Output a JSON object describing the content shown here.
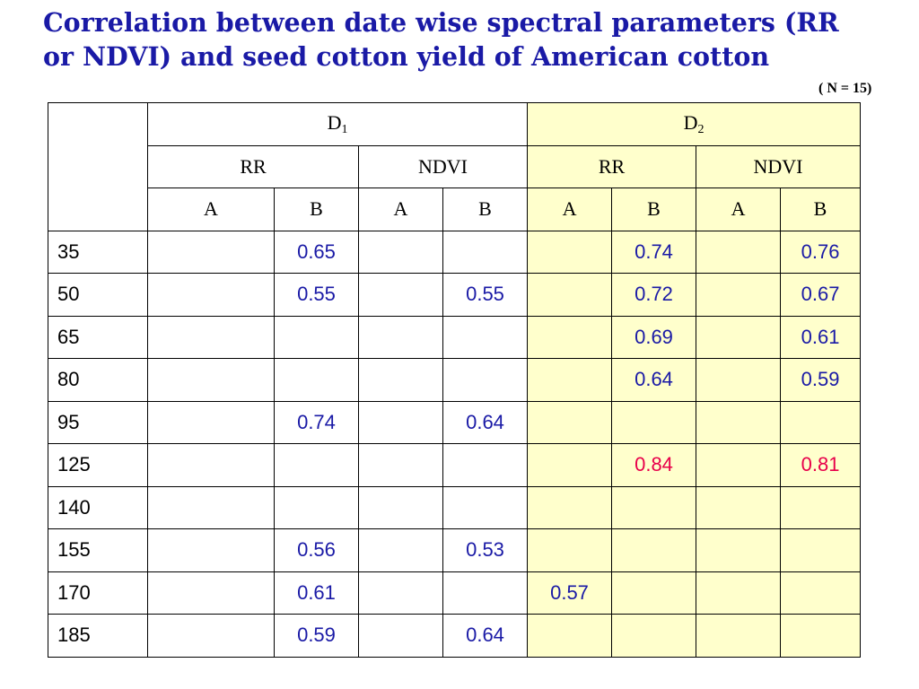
{
  "title_line1": "Correlation between date wise spectral parameters (RR",
  "title_line2": "or NDVI) and seed cotton yield of American cotton",
  "n_note": "( N = 15)",
  "colors": {
    "title": "#1a1aa6",
    "value": "#1a1aa6",
    "highlight": "#e8004a",
    "d2_background": "#ffffcc"
  },
  "header": {
    "d1": {
      "letter": "D",
      "sub": "1"
    },
    "d2": {
      "letter": "D",
      "sub": "2"
    },
    "params": [
      "RR",
      "NDVI",
      "RR",
      "NDVI"
    ],
    "subcols": [
      "A",
      "B",
      "A",
      "B",
      "A",
      "B",
      "A",
      "B"
    ]
  },
  "rows": [
    {
      "label": "35",
      "cells": [
        "",
        "0.65",
        "",
        "",
        "",
        "0.74",
        "",
        "0.76"
      ]
    },
    {
      "label": "50",
      "cells": [
        "",
        "0.55",
        "",
        "0.55",
        "",
        "0.72",
        "",
        "0.67"
      ]
    },
    {
      "label": "65",
      "cells": [
        "",
        "",
        "",
        "",
        "",
        "0.69",
        "",
        "0.61"
      ]
    },
    {
      "label": "80",
      "cells": [
        "",
        "",
        "",
        "",
        "",
        "0.64",
        "",
        "0.59"
      ]
    },
    {
      "label": "95",
      "cells": [
        "",
        "0.74",
        "",
        "0.64",
        "",
        "",
        "",
        ""
      ]
    },
    {
      "label": "125",
      "cells": [
        "",
        "",
        "",
        "",
        "",
        "0.84",
        "",
        "0.81"
      ]
    },
    {
      "label": "140",
      "cells": [
        "",
        "",
        "",
        "",
        "",
        "",
        "",
        ""
      ]
    },
    {
      "label": "155",
      "cells": [
        "",
        "0.56",
        "",
        "0.53",
        "",
        "",
        "",
        ""
      ]
    },
    {
      "label": "170",
      "cells": [
        "",
        "0.61",
        "",
        "",
        "0.57",
        "",
        "",
        ""
      ]
    },
    {
      "label": "185",
      "cells": [
        "",
        "0.59",
        "",
        "0.64",
        "",
        "",
        "",
        ""
      ]
    }
  ],
  "highlighted_row": "125"
}
